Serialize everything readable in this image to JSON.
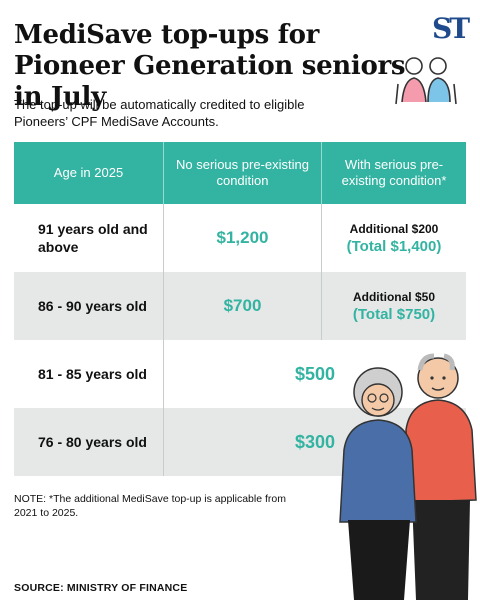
{
  "header": {
    "title": "MediSave top-ups for Pioneer Generation seniors in July",
    "brand": "ST"
  },
  "subtitle": "The top-up will be automatically credited to eligible Pioneers’ CPF MediSave Accounts.",
  "table": {
    "columns": [
      "Age in 2025",
      "No serious pre-existing condition",
      "With serious pre-existing condition*"
    ],
    "rows": [
      {
        "age": "91 years old and above",
        "no_condition": "$1,200",
        "with_condition_additional": "Additional $200",
        "with_condition_total": "(Total $1,400)"
      },
      {
        "age": "86 - 90 years old",
        "no_condition": "$700",
        "with_condition_additional": "Additional $50",
        "with_condition_total": "(Total $750)"
      },
      {
        "age": "81 - 85 years old",
        "amount": "$500"
      },
      {
        "age": "76 - 80 years old",
        "amount": "$300"
      }
    ]
  },
  "note": "NOTE: *The additional MediSave top-up is applicable from 2021 to 2025.",
  "source": "SOURCE: MINISTRY OF FINANCE",
  "colors": {
    "teal": "#33b3a1",
    "row_grey": "#e6e8e8",
    "brand_blue": "#1f4a8c"
  },
  "icons": [
    "st-logo",
    "seniors-walking-icon",
    "seniors-illustration"
  ]
}
